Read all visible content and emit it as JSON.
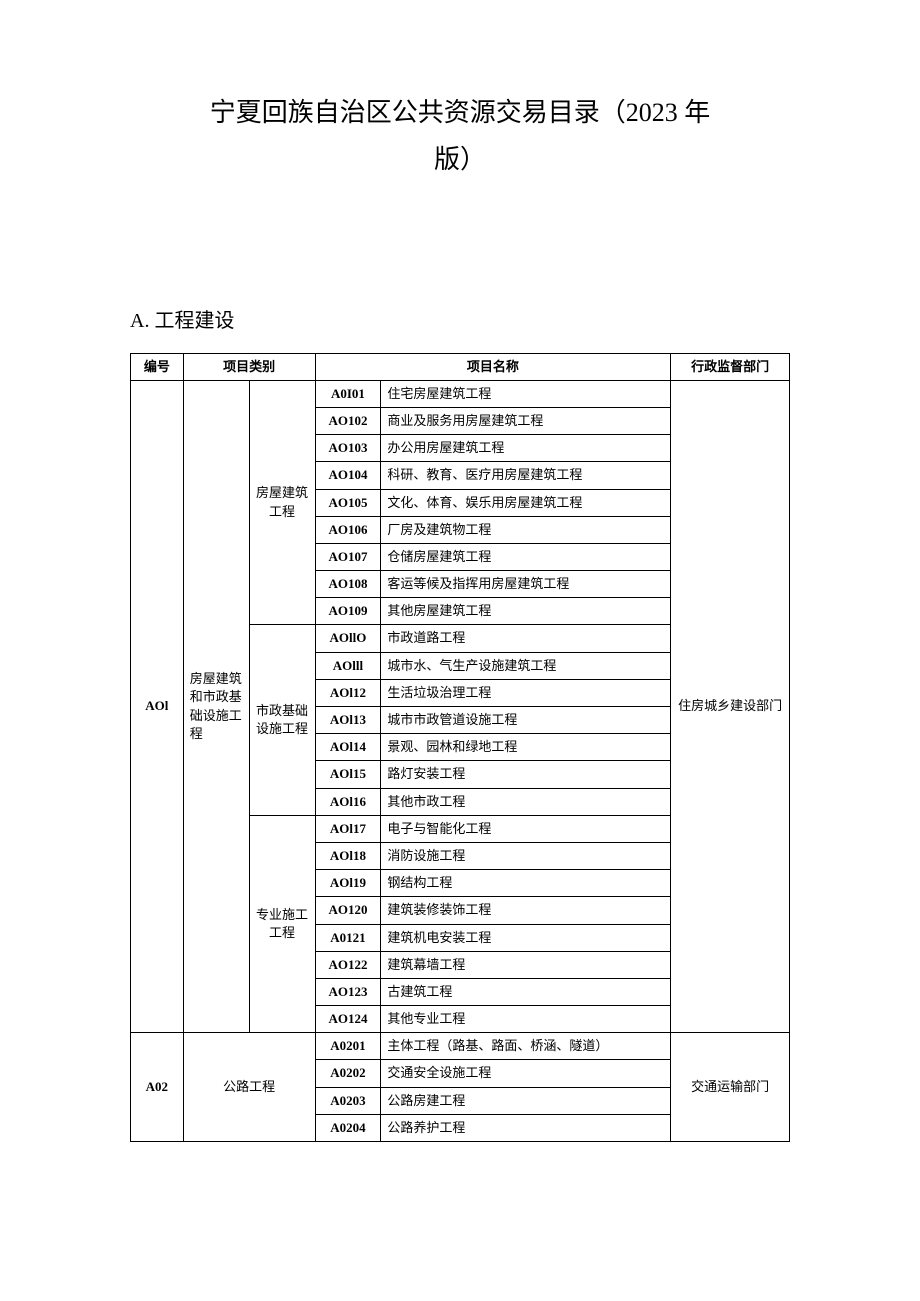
{
  "title_line1": "宁夏回族自治区公共资源交易目录（2023 年",
  "title_line2": "版）",
  "section_a_heading": "A. 工程建设",
  "header": {
    "col_id": "编号",
    "col_category": "项目类别",
    "col_name": "项目名称",
    "col_dept": "行政监督部门"
  },
  "group_a01": {
    "id": "AOl",
    "cat2": "房屋建筑和市政基础设施工程",
    "dept": "住房城乡建设部门",
    "sub1": {
      "label": "房屋建筑工程",
      "rows": [
        {
          "code": "A0I01",
          "name": "住宅房屋建筑工程"
        },
        {
          "code": "AO102",
          "name": "商业及服务用房屋建筑工程"
        },
        {
          "code": "AO103",
          "name": "办公用房屋建筑工程"
        },
        {
          "code": "AO104",
          "name": "科研、教育、医疗用房屋建筑工程"
        },
        {
          "code": "AO105",
          "name": "文化、体育、娱乐用房屋建筑工程"
        },
        {
          "code": "AO106",
          "name": "厂房及建筑物工程"
        },
        {
          "code": "AO107",
          "name": "仓储房屋建筑工程"
        },
        {
          "code": "AO108",
          "name": "客运等候及指挥用房屋建筑工程"
        },
        {
          "code": "AO109",
          "name": "其他房屋建筑工程"
        }
      ]
    },
    "sub2": {
      "label": "市政基础设施工程",
      "rows": [
        {
          "code": "AOllO",
          "name": "市政道路工程"
        },
        {
          "code": "AOlll",
          "name": "城市水、气生产设施建筑工程"
        },
        {
          "code": "AOl12",
          "name": "生活垃圾治理工程"
        },
        {
          "code": "AOl13",
          "name": "城市市政管道设施工程"
        },
        {
          "code": "AOl14",
          "name": "景观、园林和绿地工程"
        },
        {
          "code": "AOl15",
          "name": "路灯安装工程"
        },
        {
          "code": "AOl16",
          "name": "其他市政工程"
        }
      ]
    },
    "sub3": {
      "label": "专业施工工程",
      "rows": [
        {
          "code": "AOl17",
          "name": "电子与智能化工程"
        },
        {
          "code": "AOl18",
          "name": "消防设施工程"
        },
        {
          "code": "AOl19",
          "name": "钢结构工程"
        },
        {
          "code": "AO120",
          "name": "建筑装修装饰工程"
        },
        {
          "code": "A0121",
          "name": "建筑机电安装工程"
        },
        {
          "code": "AO122",
          "name": "建筑幕墙工程"
        },
        {
          "code": "AO123",
          "name": "古建筑工程"
        },
        {
          "code": "AO124",
          "name": "其他专业工程"
        }
      ]
    }
  },
  "group_a02": {
    "id": "A02",
    "cat2": "公路工程",
    "dept": "交通运输部门",
    "rows": [
      {
        "code": "A0201",
        "name": "主体工程（路基、路面、桥涵、隧道）"
      },
      {
        "code": "A0202",
        "name": "交通安全设施工程"
      },
      {
        "code": "A0203",
        "name": "公路房建工程"
      },
      {
        "code": "A0204",
        "name": "公路养护工程"
      }
    ]
  },
  "col_widths": {
    "id_pct": 8,
    "cat2_pct": 10,
    "cat3_pct": 10,
    "code_pct": 10,
    "name_pct": 44,
    "dept_pct": 18
  }
}
